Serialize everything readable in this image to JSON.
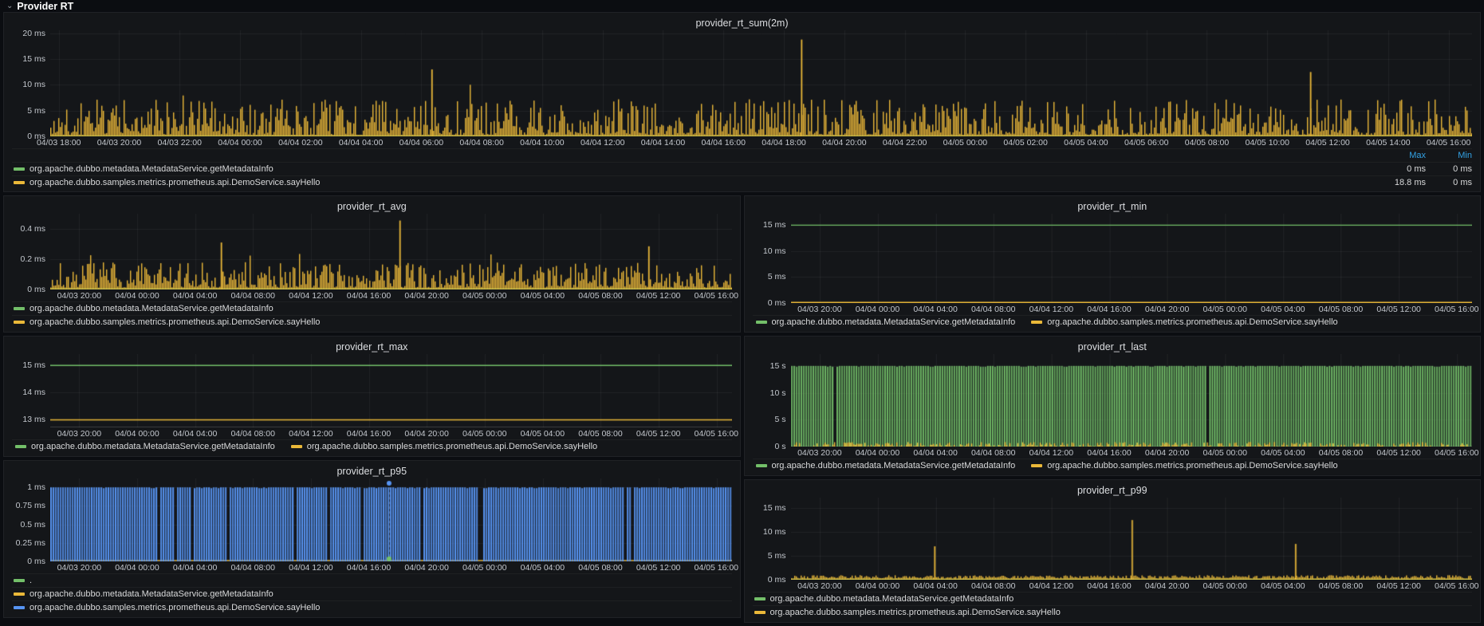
{
  "theme": {
    "bg": "#0b0d11",
    "panel_bg": "#141619",
    "panel_border": "#202226",
    "text": "#d8d9da",
    "axis_text": "#c3c7cd",
    "title_text": "#dcdee1",
    "link_blue": "#33a2e5",
    "green": "#73BF69",
    "yellow": "#EAB839",
    "blue": "#5794F2",
    "grid": "rgba(255,255,255,0.055)",
    "baseline": "rgba(255,255,255,0.16)"
  },
  "row_header": {
    "title": "Provider RT",
    "icon": "chevron-down",
    "icon_glyph": "⌄"
  },
  "x_axis_presets": {
    "x24": {
      "start": 0.006,
      "step": 0.0425,
      "labels": [
        "04/03 18:00",
        "04/03 20:00",
        "04/03 22:00",
        "04/04 00:00",
        "04/04 02:00",
        "04/04 04:00",
        "04/04 06:00",
        "04/04 08:00",
        "04/04 10:00",
        "04/04 12:00",
        "04/04 14:00",
        "04/04 16:00",
        "04/04 18:00",
        "04/04 20:00",
        "04/04 22:00",
        "04/05 00:00",
        "04/05 02:00",
        "04/05 04:00",
        "04/05 06:00",
        "04/05 08:00",
        "04/05 10:00",
        "04/05 12:00",
        "04/05 14:00",
        "04/05 16:00"
      ]
    },
    "x12": {
      "start": 0.0425,
      "step": 0.085,
      "labels": [
        "04/03 20:00",
        "04/04 00:00",
        "04/04 04:00",
        "04/04 08:00",
        "04/04 12:00",
        "04/04 16:00",
        "04/04 20:00",
        "04/05 00:00",
        "04/05 04:00",
        "04/05 08:00",
        "04/05 12:00",
        "04/05 16:00"
      ]
    }
  },
  "chart_data": [
    {
      "type": "bar",
      "title": "provider_rt_sum(2m)",
      "unit": "ms",
      "xlabel": "",
      "ylabel": "",
      "ylim": [
        0,
        20.6
      ],
      "y_ticks": [
        {
          "label": "20 ms",
          "value": 20
        },
        {
          "label": "15 ms",
          "value": 15
        },
        {
          "label": "10 ms",
          "value": 10
        },
        {
          "label": "5 ms",
          "value": 5
        },
        {
          "label": "0 ms",
          "value": 0
        }
      ],
      "x_ticks": "x24",
      "series": [
        {
          "name": "org.apache.dubbo.metadata.MetadataService.getMetadataInfo",
          "color": "#73BF69",
          "kind": "flat",
          "value": 0.07
        },
        {
          "name": "org.apache.dubbo.samples.metrics.prometheus.api.DemoService.sayHello",
          "color": "#EAB839",
          "kind": "noise",
          "seed": 42,
          "base": [
            0.3,
            7.2
          ],
          "pow": 2.0,
          "density": 1,
          "burst_prob": 0.006,
          "burst": [
            7.5,
            10.5
          ],
          "spikes": [
            {
              "frac": 0.268,
              "value": 13.0
            },
            {
              "frac": 0.528,
              "value": 18.8
            },
            {
              "frac": 0.886,
              "value": 12.5
            }
          ]
        }
      ],
      "legend": {
        "mode": "table",
        "value_headers": [
          "Max",
          "Min"
        ],
        "items": [
          {
            "color": "#73BF69",
            "label": "org.apache.dubbo.metadata.MetadataService.getMetadataInfo",
            "values": [
              "0 ms",
              "0 ms"
            ]
          },
          {
            "color": "#EAB839",
            "label": "org.apache.dubbo.samples.metrics.prometheus.api.DemoService.sayHello",
            "values": [
              "18.8 ms",
              "0 ms"
            ]
          }
        ]
      }
    },
    {
      "type": "bar",
      "title": "provider_rt_avg",
      "unit": "ms",
      "ylim": [
        0,
        0.5
      ],
      "y_ticks": [
        {
          "label": "0.4 ms",
          "value": 0.4
        },
        {
          "label": "0.2 ms",
          "value": 0.2
        },
        {
          "label": "0 ms",
          "value": 0
        }
      ],
      "x_ticks": "x12",
      "series": [
        {
          "name": "org.apache.dubbo.metadata.MetadataService.getMetadataInfo",
          "color": "#73BF69",
          "kind": "flat",
          "value": 0.004
        },
        {
          "name": "org.apache.dubbo.samples.metrics.prometheus.api.DemoService.sayHello",
          "color": "#EAB839",
          "kind": "noise",
          "seed": 7,
          "base": [
            0.012,
            0.18
          ],
          "pow": 1.8,
          "density": 1,
          "burst_prob": 0.008,
          "burst": [
            0.19,
            0.26
          ],
          "spikes": [
            {
              "frac": 0.25,
              "value": 0.31
            },
            {
              "frac": 0.512,
              "value": 0.455
            },
            {
              "frac": 0.877,
              "value": 0.285
            }
          ]
        }
      ],
      "legend": {
        "mode": "list-vertical",
        "items": [
          {
            "color": "#73BF69",
            "label": "org.apache.dubbo.metadata.MetadataService.getMetadataInfo"
          },
          {
            "color": "#EAB839",
            "label": "org.apache.dubbo.samples.metrics.prometheus.api.DemoService.sayHello"
          }
        ]
      }
    },
    {
      "type": "line",
      "title": "provider_rt_min",
      "unit": "ms",
      "ylim": [
        0,
        17.2
      ],
      "y_ticks": [
        {
          "label": "15 ms",
          "value": 15
        },
        {
          "label": "10 ms",
          "value": 10
        },
        {
          "label": "5 ms",
          "value": 5
        },
        {
          "label": "0 ms",
          "value": 0
        }
      ],
      "x_ticks": "x12",
      "series": [
        {
          "name": "org.apache.dubbo.metadata.MetadataService.getMetadataInfo",
          "color": "#73BF69",
          "kind": "flat",
          "value": 15
        },
        {
          "name": "org.apache.dubbo.samples.metrics.prometheus.api.DemoService.sayHello",
          "color": "#EAB839",
          "kind": "flat",
          "value": 0.12
        }
      ],
      "legend": {
        "mode": "list-horizontal",
        "items": [
          {
            "color": "#73BF69",
            "label": "org.apache.dubbo.metadata.MetadataService.getMetadataInfo"
          },
          {
            "color": "#EAB839",
            "label": "org.apache.dubbo.samples.metrics.prometheus.api.DemoService.sayHello"
          }
        ]
      }
    },
    {
      "type": "line",
      "title": "provider_rt_max",
      "unit": "ms",
      "ylim": [
        12.72,
        15.42
      ],
      "y_ticks": [
        {
          "label": "15 ms",
          "value": 15
        },
        {
          "label": "14 ms",
          "value": 14
        },
        {
          "label": "13 ms",
          "value": 13
        }
      ],
      "x_ticks": "x12",
      "series": [
        {
          "name": "org.apache.dubbo.metadata.MetadataService.getMetadataInfo",
          "color": "#73BF69",
          "kind": "flat",
          "value": 15
        },
        {
          "name": "org.apache.dubbo.samples.metrics.prometheus.api.DemoService.sayHello",
          "color": "#EAB839",
          "kind": "flat",
          "value": 13
        }
      ],
      "legend": {
        "mode": "list-horizontal",
        "items": [
          {
            "color": "#73BF69",
            "label": "org.apache.dubbo.metadata.MetadataService.getMetadataInfo"
          },
          {
            "color": "#EAB839",
            "label": "org.apache.dubbo.samples.metrics.prometheus.api.DemoService.sayHello"
          }
        ]
      }
    },
    {
      "type": "area",
      "title": "provider_rt_last",
      "unit": "s",
      "ylim": [
        0,
        17.2
      ],
      "y_ticks": [
        {
          "label": "15 s",
          "value": 15
        },
        {
          "label": "10 s",
          "value": 10
        },
        {
          "label": "5 s",
          "value": 5
        },
        {
          "label": "0 s",
          "value": 0
        }
      ],
      "x_ticks": "x12",
      "series": [
        {
          "name": "org.apache.dubbo.metadata.MetadataService.getMetadataInfo",
          "color": "#73BF69",
          "kind": "fill",
          "value": 15,
          "seed": 19,
          "alpha": 0.72,
          "gap_prob": 0.012
        },
        {
          "name": "org.apache.dubbo.samples.metrics.prometheus.api.DemoService.sayHello",
          "color": "#EAB839",
          "kind": "noise",
          "seed": 31,
          "base": [
            0.08,
            0.85
          ],
          "pow": 1,
          "density": 0.55
        }
      ],
      "legend": {
        "mode": "list-horizontal",
        "items": [
          {
            "color": "#73BF69",
            "label": "org.apache.dubbo.metadata.MetadataService.getMetadataInfo"
          },
          {
            "color": "#EAB839",
            "label": "org.apache.dubbo.samples.metrics.prometheus.api.DemoService.sayHello"
          }
        ]
      }
    },
    {
      "type": "area",
      "title": "provider_rt_p95",
      "unit": "ms",
      "ylim": [
        0,
        1.12
      ],
      "y_ticks": [
        {
          "label": "1 ms",
          "value": 1
        },
        {
          "label": "0.75 ms",
          "value": 0.75
        },
        {
          "label": "0.5 ms",
          "value": 0.5
        },
        {
          "label": "0.25 ms",
          "value": 0.25
        },
        {
          "label": "0 ms",
          "value": 0
        }
      ],
      "x_ticks": "x12",
      "vline": {
        "frac": 0.497,
        "from_value": 1.0
      },
      "series": [
        {
          "name": ".",
          "color": "#73BF69",
          "kind": "dots",
          "markers": [
            {
              "frac": 0.497,
              "value": 0.035,
              "r": 3
            }
          ]
        },
        {
          "name": "org.apache.dubbo.metadata.MetadataService.getMetadataInfo",
          "color": "#EAB839",
          "kind": "flat",
          "value": 0.012
        },
        {
          "name": "org.apache.dubbo.samples.metrics.prometheus.api.DemoService.sayHello",
          "color": "#5794F2",
          "kind": "fill",
          "value": 1.0,
          "seed": 55,
          "alpha": 0.78,
          "gap_prob": 0.05,
          "markers": [
            {
              "frac": 0.497,
              "value": 1.055,
              "r": 3
            }
          ]
        }
      ],
      "legend": {
        "mode": "list-vertical",
        "items": [
          {
            "color": "#73BF69",
            "label": "."
          },
          {
            "color": "#EAB839",
            "label": "org.apache.dubbo.metadata.MetadataService.getMetadataInfo"
          },
          {
            "color": "#5794F2",
            "label": "org.apache.dubbo.samples.metrics.prometheus.api.DemoService.sayHello"
          }
        ]
      }
    },
    {
      "type": "bar",
      "title": "provider_rt_p99",
      "unit": "ms",
      "ylim": [
        0,
        17.2
      ],
      "y_ticks": [
        {
          "label": "15 ms",
          "value": 15
        },
        {
          "label": "10 ms",
          "value": 10
        },
        {
          "label": "5 ms",
          "value": 5
        },
        {
          "label": "0 ms",
          "value": 0
        }
      ],
      "x_ticks": "x12",
      "series": [
        {
          "name": "org.apache.dubbo.metadata.MetadataService.getMetadataInfo",
          "color": "#73BF69",
          "kind": "flat",
          "value": 0.1
        },
        {
          "name": "org.apache.dubbo.samples.metrics.prometheus.api.DemoService.sayHello",
          "color": "#EAB839",
          "kind": "noise",
          "seed": 63,
          "base": [
            0.25,
            0.95
          ],
          "pow": 1,
          "density": 1,
          "spikes": [
            {
              "frac": 0.21,
              "value": 7.0
            },
            {
              "frac": 0.5,
              "value": 12.5
            },
            {
              "frac": 0.74,
              "value": 7.5
            }
          ]
        }
      ],
      "legend": {
        "mode": "list-vertical",
        "items": [
          {
            "color": "#73BF69",
            "label": "org.apache.dubbo.metadata.MetadataService.getMetadataInfo"
          },
          {
            "color": "#EAB839",
            "label": "org.apache.dubbo.samples.metrics.prometheus.api.DemoService.sayHello"
          }
        ]
      }
    }
  ]
}
